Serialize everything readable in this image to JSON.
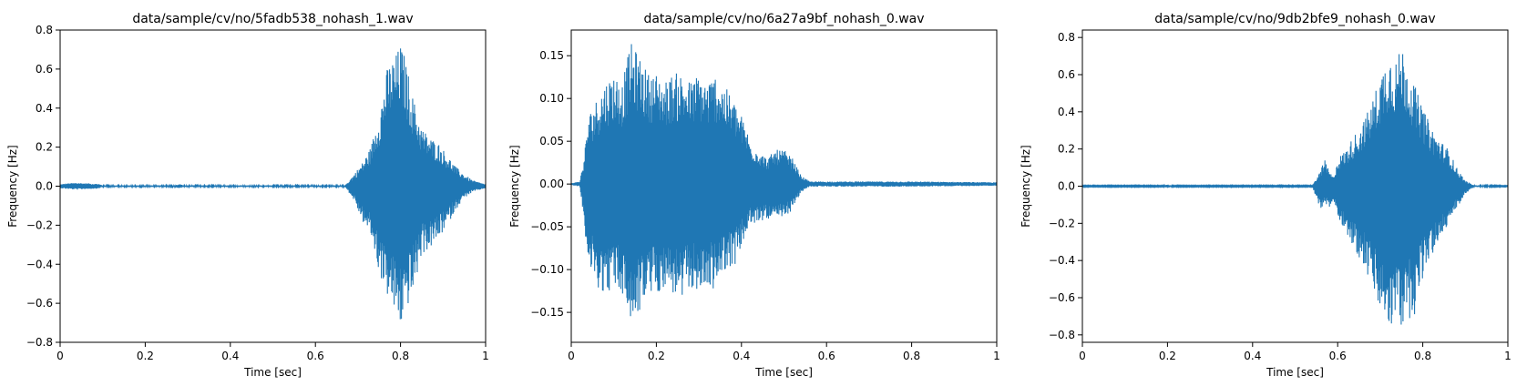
{
  "chart_data": [
    {
      "type": "line",
      "title": "data/sample/cv/no/5fadb538_nohash_1.wav",
      "xlabel": "Time [sec]",
      "ylabel": "Frequency [Hz]",
      "xlim": [
        0,
        1
      ],
      "ylim": [
        -0.8,
        0.8
      ],
      "xticks": [
        0,
        0.2,
        0.4,
        0.6,
        0.8,
        1
      ],
      "xtick_labels": [
        "0",
        "0.2",
        "0.4",
        "0.6",
        "0.8",
        "1"
      ],
      "yticks": [
        -0.8,
        -0.6,
        -0.4,
        -0.2,
        0.0,
        0.2,
        0.4,
        0.6,
        0.8
      ],
      "ytick_labels": [
        "−0.8",
        "−0.6",
        "−0.4",
        "−0.2",
        "0.0",
        "0.2",
        "0.4",
        "0.6",
        "0.8"
      ],
      "color": "#1f77b4",
      "envelope": {
        "x": [
          0,
          0.02,
          0.04,
          0.06,
          0.09,
          0.1,
          0.27,
          0.28,
          0.29,
          0.67,
          0.69,
          0.71,
          0.73,
          0.75,
          0.77,
          0.79,
          0.8,
          0.81,
          0.83,
          0.85,
          0.87,
          0.89,
          0.91,
          0.93,
          0.95,
          0.97,
          1.0
        ],
        "upper": [
          0.01,
          0.015,
          0.018,
          0.015,
          0.012,
          0.004,
          0.004,
          0.012,
          0.004,
          0.004,
          0.06,
          0.12,
          0.2,
          0.38,
          0.62,
          0.68,
          0.73,
          0.67,
          0.45,
          0.3,
          0.25,
          0.22,
          0.16,
          0.1,
          0.06,
          0.03,
          0.01
        ],
        "lower": [
          -0.01,
          -0.015,
          -0.018,
          -0.015,
          -0.012,
          -0.004,
          -0.004,
          -0.012,
          -0.004,
          -0.004,
          -0.07,
          -0.18,
          -0.25,
          -0.45,
          -0.57,
          -0.67,
          -0.73,
          -0.65,
          -0.55,
          -0.35,
          -0.32,
          -0.27,
          -0.2,
          -0.12,
          -0.06,
          -0.03,
          -0.01
        ]
      }
    },
    {
      "type": "line",
      "title": "data/sample/cv/no/6a27a9bf_nohash_0.wav",
      "xlabel": "Time [sec]",
      "ylabel": "Frequency [Hz]",
      "xlim": [
        0,
        1
      ],
      "ylim": [
        -0.185,
        0.18
      ],
      "xticks": [
        0,
        0.2,
        0.4,
        0.6,
        0.8,
        1
      ],
      "xtick_labels": [
        "0",
        "0.2",
        "0.4",
        "0.6",
        "0.8",
        "1"
      ],
      "yticks": [
        -0.15,
        -0.1,
        -0.05,
        0.0,
        0.05,
        0.1,
        0.15
      ],
      "ytick_labels": [
        "−0.15",
        "−0.10",
        "−0.05",
        "0.00",
        "0.05",
        "0.10",
        "0.15"
      ],
      "color": "#1f77b4",
      "envelope": {
        "x": [
          0,
          0.02,
          0.03,
          0.04,
          0.06,
          0.08,
          0.1,
          0.12,
          0.14,
          0.16,
          0.18,
          0.2,
          0.22,
          0.24,
          0.26,
          0.28,
          0.3,
          0.32,
          0.34,
          0.36,
          0.38,
          0.4,
          0.41,
          0.42,
          0.44,
          0.46,
          0.48,
          0.5,
          0.52,
          0.54,
          0.56,
          0.6,
          0.8,
          1.0
        ],
        "upper": [
          0.001,
          0.003,
          0.03,
          0.08,
          0.1,
          0.12,
          0.13,
          0.12,
          0.165,
          0.15,
          0.13,
          0.13,
          0.12,
          0.13,
          0.13,
          0.12,
          0.13,
          0.12,
          0.13,
          0.115,
          0.1,
          0.08,
          0.07,
          0.05,
          0.04,
          0.03,
          0.04,
          0.04,
          0.03,
          0.01,
          0.003,
          0.003,
          0.003,
          0.002
        ],
        "lower": [
          -0.001,
          -0.003,
          -0.04,
          -0.1,
          -0.12,
          -0.13,
          -0.12,
          -0.13,
          -0.165,
          -0.15,
          -0.13,
          -0.13,
          -0.12,
          -0.13,
          -0.14,
          -0.12,
          -0.13,
          -0.12,
          -0.125,
          -0.1,
          -0.1,
          -0.075,
          -0.06,
          -0.05,
          -0.045,
          -0.04,
          -0.045,
          -0.04,
          -0.03,
          -0.01,
          -0.003,
          -0.003,
          -0.003,
          -0.002
        ]
      }
    },
    {
      "type": "line",
      "title": "data/sample/cv/no/9db2bfe9_nohash_0.wav",
      "xlabel": "Time [sec]",
      "ylabel": "Frequency [Hz]",
      "xlim": [
        0,
        1
      ],
      "ylim": [
        -0.84,
        0.84
      ],
      "xticks": [
        0,
        0.2,
        0.4,
        0.6,
        0.8,
        1
      ],
      "xtick_labels": [
        "0",
        "0.2",
        "0.4",
        "0.6",
        "0.8",
        "1"
      ],
      "yticks": [
        -0.8,
        -0.6,
        -0.4,
        -0.2,
        0.0,
        0.2,
        0.4,
        0.6,
        0.8
      ],
      "ytick_labels": [
        "−0.8",
        "−0.6",
        "−0.4",
        "−0.2",
        "0.0",
        "0.2",
        "0.4",
        "0.6",
        "0.8"
      ],
      "color": "#1f77b4",
      "envelope": {
        "x": [
          0,
          0.19,
          0.2,
          0.21,
          0.54,
          0.55,
          0.56,
          0.57,
          0.58,
          0.59,
          0.6,
          0.62,
          0.64,
          0.66,
          0.68,
          0.7,
          0.72,
          0.74,
          0.75,
          0.76,
          0.78,
          0.8,
          0.82,
          0.84,
          0.86,
          0.88,
          0.9,
          0.92,
          1.0
        ],
        "upper": [
          0.003,
          0.003,
          0.01,
          0.003,
          0.003,
          0.04,
          0.09,
          0.14,
          0.08,
          0.05,
          0.15,
          0.2,
          0.28,
          0.35,
          0.45,
          0.6,
          0.73,
          0.68,
          0.77,
          0.7,
          0.55,
          0.42,
          0.32,
          0.25,
          0.2,
          0.1,
          0.03,
          0.005,
          0.002
        ],
        "lower": [
          -0.003,
          -0.003,
          -0.01,
          -0.003,
          -0.003,
          -0.06,
          -0.13,
          -0.1,
          -0.12,
          -0.08,
          -0.16,
          -0.25,
          -0.35,
          -0.42,
          -0.55,
          -0.68,
          -0.77,
          -0.73,
          -0.78,
          -0.72,
          -0.7,
          -0.5,
          -0.38,
          -0.3,
          -0.2,
          -0.12,
          -0.04,
          -0.005,
          -0.002
        ]
      }
    }
  ]
}
